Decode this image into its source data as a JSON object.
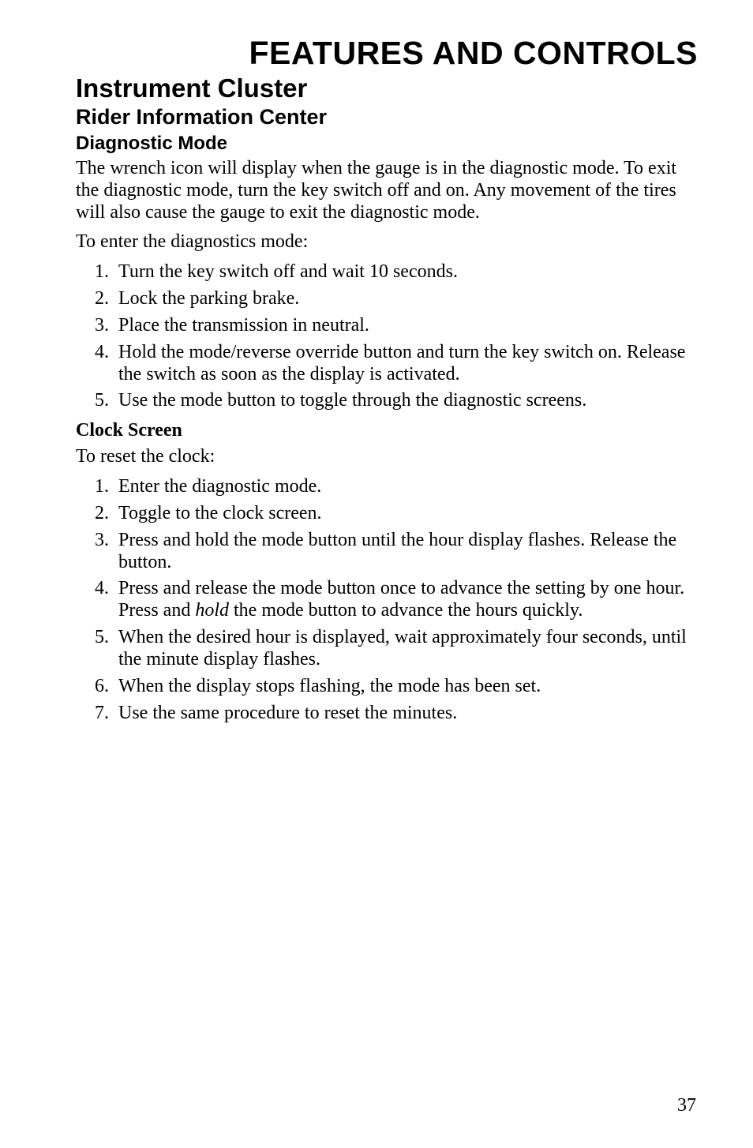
{
  "pageNumber": "37",
  "chapterTitle": "FEATURES AND CONTROLS",
  "sectionTitle": "Instrument Cluster",
  "subsectionTitle": "Rider Information Center",
  "subsubsectionTitle": "Diagnostic Mode",
  "para1": "The wrench icon will display when the gauge is in the diagnostic mode. To exit the diagnostic mode, turn the key switch off and on. Any movement of the tires will also cause the gauge to exit the diagnostic mode.",
  "para2": "To enter the diagnostics mode:",
  "list1": {
    "items": [
      "Turn the key switch off and wait 10 seconds.",
      "Lock the parking brake.",
      "Place the transmission in neutral.",
      "Hold the mode/reverse override button and turn the key switch on. Release the switch as soon as the display is activated.",
      "Use the mode button to toggle through the diagnostic screens."
    ]
  },
  "h4_clock": "Clock Screen",
  "para3": "To reset the clock:",
  "list2": {
    "items": [
      "Enter the diagnostic mode.",
      "Toggle to the clock screen.",
      "Press and hold the mode button until the hour display flashes. Release the button.",
      {
        "pre": "Press and release the mode button once to advance the setting by one hour. Press and ",
        "italic": "hold",
        "post": " the mode button to advance the hours quickly."
      },
      "When the desired hour is displayed, wait approximately four seconds, until the minute display flashes.",
      "When the display stops flashing, the mode has been set.",
      "Use the same procedure to reset the minutes."
    ]
  },
  "styles": {
    "bodyFontFamily": "Times New Roman",
    "headingFontFamily": "Arial",
    "textColor": "#000000",
    "backgroundColor": "#ffffff",
    "chapterTitleFontSize": 41,
    "sectionTitleFontSize": 33,
    "subsectionTitleFontSize": 27,
    "subsubsectionTitleFontSize": 24,
    "bodyFontSize": 24,
    "pageNumberFontSize": 24
  }
}
